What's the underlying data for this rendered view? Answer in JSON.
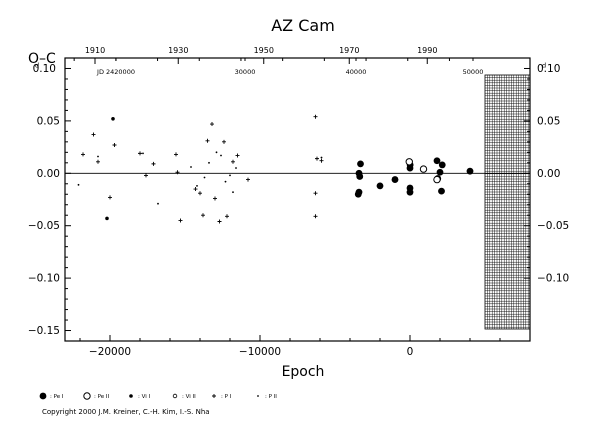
{
  "chart_data": {
    "type": "scatter",
    "title": "AZ Cam",
    "xlabel": "Epoch",
    "ylabel": "O–C",
    "xlim": [
      -23000,
      8000
    ],
    "ylim": [
      -0.16,
      0.11
    ],
    "grid": false,
    "zero_line": true,
    "x_ticks": [
      {
        "value": -20000,
        "label": "−20000"
      },
      {
        "value": -10000,
        "label": "−10000"
      },
      {
        "value": 0,
        "label": "0"
      }
    ],
    "y_ticks_left": [
      {
        "value": 0.1,
        "label": "0.10"
      },
      {
        "value": 0.05,
        "label": "0.05"
      },
      {
        "value": 0.0,
        "label": "0.00"
      },
      {
        "value": -0.05,
        "label": "−0.05"
      },
      {
        "value": -0.1,
        "label": "−0.10"
      },
      {
        "value": -0.15,
        "label": "−0.15"
      }
    ],
    "y_ticks_right": [
      {
        "value": 0.1,
        "label": "0.10"
      },
      {
        "value": 0.05,
        "label": "0.05"
      },
      {
        "value": 0.0,
        "label": "0.00"
      },
      {
        "value": -0.05,
        "label": "−0.05"
      },
      {
        "value": -0.1,
        "label": "−0.10"
      }
    ],
    "day_unit": "d",
    "top_year_ticks": [
      {
        "label": "1910",
        "epoch": -21000
      },
      {
        "label": "1930",
        "epoch": -15450
      },
      {
        "label": "1950",
        "epoch": -9750
      },
      {
        "label": "1970",
        "epoch": -4050
      },
      {
        "label": "1990",
        "epoch": 1150
      }
    ],
    "top_jd_labels": [
      {
        "label": "JD 2420000",
        "epoch": -19600
      },
      {
        "label": "30000",
        "epoch": -11000
      },
      {
        "label": "40000",
        "epoch": -3600
      },
      {
        "label": "50000",
        "epoch": 4200
      }
    ],
    "hatched_region_epoch": [
      5000,
      8000
    ],
    "series": [
      {
        "name": "Pe I",
        "marker": "filled-circle-large",
        "points": [
          [
            -3400,
            0.0
          ],
          [
            -3400,
            -0.018
          ],
          [
            -3450,
            -0.02
          ],
          [
            -3300,
            0.009
          ],
          [
            -3350,
            -0.003
          ],
          [
            -2000,
            -0.012
          ],
          [
            -1000,
            -0.006
          ],
          [
            0,
            0.005
          ],
          [
            0,
            -0.014
          ],
          [
            0,
            -0.018
          ],
          [
            10,
            0.008
          ],
          [
            1800,
            0.012
          ],
          [
            1850,
            -0.005
          ],
          [
            2000,
            0.001
          ],
          [
            2100,
            -0.017
          ],
          [
            2150,
            0.008
          ],
          [
            4000,
            0.002
          ]
        ]
      },
      {
        "name": "Pe II",
        "marker": "open-circle-large",
        "points": [
          [
            -50,
            0.011
          ],
          [
            900,
            0.004
          ],
          [
            1800,
            -0.006
          ]
        ]
      },
      {
        "name": "Vi I",
        "marker": "filled-circle-small",
        "points": [
          [
            -20200,
            -0.043
          ],
          [
            -19800,
            0.052
          ]
        ]
      },
      {
        "name": "Vi II",
        "marker": "open-circle-small",
        "points": []
      },
      {
        "name": "P I",
        "marker": "plus",
        "points": [
          [
            -21800,
            0.018
          ],
          [
            -21100,
            0.037
          ],
          [
            -20800,
            0.011
          ],
          [
            -20000,
            -0.023
          ],
          [
            -19700,
            0.027
          ],
          [
            -18000,
            0.019
          ],
          [
            -17600,
            -0.002
          ],
          [
            -17100,
            0.009
          ],
          [
            -15600,
            0.018
          ],
          [
            -15500,
            0.001
          ],
          [
            -15300,
            -0.045
          ],
          [
            -14300,
            -0.015
          ],
          [
            -14000,
            -0.019
          ],
          [
            -13800,
            -0.04
          ],
          [
            -13500,
            0.031
          ],
          [
            -13200,
            0.047
          ],
          [
            -13000,
            -0.024
          ],
          [
            -12700,
            -0.046
          ],
          [
            -12400,
            0.03
          ],
          [
            -12200,
            -0.041
          ],
          [
            -11800,
            0.011
          ],
          [
            -11500,
            0.017
          ],
          [
            -10800,
            -0.006
          ],
          [
            -6300,
            0.054
          ],
          [
            -6300,
            -0.019
          ],
          [
            -6300,
            -0.041
          ],
          [
            -6200,
            0.014
          ],
          [
            -5900,
            0.012
          ]
        ]
      },
      {
        "name": "P II",
        "marker": "dot",
        "points": [
          [
            -22100,
            -0.011
          ],
          [
            -20800,
            0.016
          ],
          [
            -17800,
            0.019
          ],
          [
            -16800,
            -0.029
          ],
          [
            -14600,
            0.006
          ],
          [
            -14200,
            -0.012
          ],
          [
            -13700,
            -0.004
          ],
          [
            -13400,
            0.01
          ],
          [
            -12900,
            0.02
          ],
          [
            -12600,
            0.017
          ],
          [
            -12300,
            -0.008
          ],
          [
            -12000,
            -0.002
          ],
          [
            -11800,
            -0.018
          ],
          [
            -11600,
            0.005
          ],
          [
            -5900,
            0.015
          ]
        ]
      }
    ],
    "legend": [
      {
        "symbol": "filled-circle-large",
        "label": ": Pe I"
      },
      {
        "symbol": "open-circle-large",
        "label": ": Pe II"
      },
      {
        "symbol": "filled-circle-small",
        "label": ": Vi I"
      },
      {
        "symbol": "open-circle-small",
        "label": ": Vi II"
      },
      {
        "symbol": "plus",
        "label": ": P I"
      },
      {
        "symbol": "dot",
        "label": ": P II"
      }
    ],
    "legend_position": "bottom-left"
  },
  "copyright": "Copyright 2000 J.M. Kreiner, C.-H. Kim, I.-S. Nha",
  "style": {
    "ink": "#000000",
    "background": "#ffffff"
  }
}
